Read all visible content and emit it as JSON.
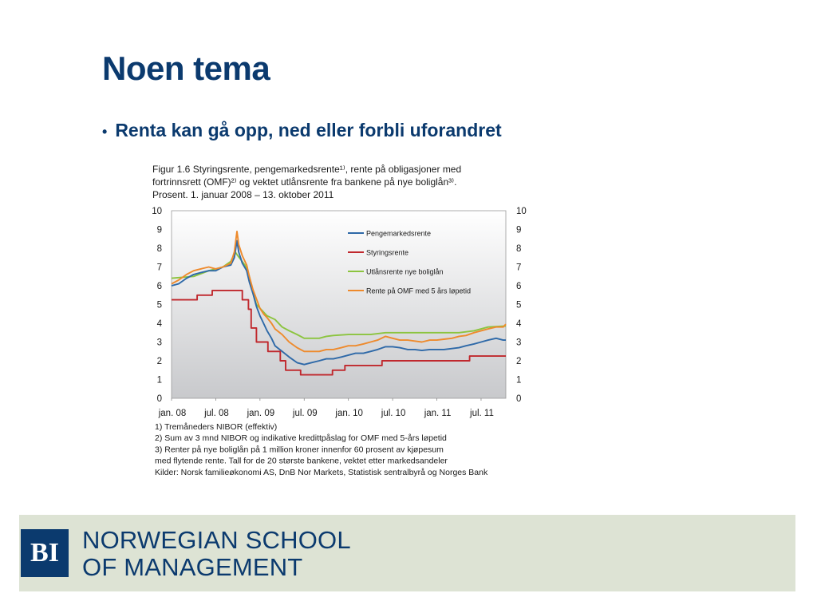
{
  "slide": {
    "title": "Noen tema",
    "bullet": "Renta kan gå opp, ned eller forbli uforandret"
  },
  "footer": {
    "logo_text": "BI",
    "school_line1": "NORWEGIAN SCHOOL",
    "school_line2": "OF MANAGEMENT",
    "band_color": "#dde3d4",
    "brand_color": "#0b3a6e"
  },
  "chart_data": {
    "type": "line",
    "title_lines": [
      "Figur 1.6 Styringsrente, pengemarkedsrente¹⁾, rente på obligasjoner med",
      "fortrinnsrett (OMF)²⁾ og vektet utlånsrente fra bankene på nye boliglån³⁾.",
      "Prosent. 1. januar 2008 – 13. oktober 2011"
    ],
    "x_tick_labels": [
      "jan. 08",
      "jul. 08",
      "jan. 09",
      "jul. 09",
      "jan. 10",
      "jul. 10",
      "jan. 11",
      "jul. 11"
    ],
    "x_tick_years": [
      2008.0,
      2008.5,
      2009.0,
      2009.5,
      2010.0,
      2010.5,
      2011.0,
      2011.5
    ],
    "xlim": [
      2008.0,
      2011.78
    ],
    "ylim": [
      0,
      10
    ],
    "y_ticks": [
      "0",
      "1",
      "2",
      "3",
      "4",
      "5",
      "6",
      "7",
      "8",
      "9",
      "10"
    ],
    "grid": false,
    "legend_position": "top-right",
    "background": "gradient-grey",
    "series": [
      {
        "name": "Pengemarkedsrente",
        "color": "#2e69a8",
        "points": [
          [
            2008.0,
            6.0
          ],
          [
            2008.08,
            6.1
          ],
          [
            2008.17,
            6.4
          ],
          [
            2008.25,
            6.6
          ],
          [
            2008.33,
            6.7
          ],
          [
            2008.42,
            6.8
          ],
          [
            2008.5,
            6.8
          ],
          [
            2008.58,
            7.0
          ],
          [
            2008.67,
            7.1
          ],
          [
            2008.71,
            7.5
          ],
          [
            2008.74,
            8.4
          ],
          [
            2008.76,
            7.8
          ],
          [
            2008.8,
            7.2
          ],
          [
            2008.85,
            6.8
          ],
          [
            2008.88,
            6.2
          ],
          [
            2008.92,
            5.6
          ],
          [
            2008.96,
            4.9
          ],
          [
            2009.0,
            4.4
          ],
          [
            2009.04,
            4.0
          ],
          [
            2009.08,
            3.6
          ],
          [
            2009.13,
            3.2
          ],
          [
            2009.17,
            2.8
          ],
          [
            2009.25,
            2.5
          ],
          [
            2009.33,
            2.2
          ],
          [
            2009.42,
            1.9
          ],
          [
            2009.5,
            1.8
          ],
          [
            2009.58,
            1.9
          ],
          [
            2009.67,
            2.0
          ],
          [
            2009.75,
            2.1
          ],
          [
            2009.83,
            2.1
          ],
          [
            2009.92,
            2.2
          ],
          [
            2010.0,
            2.3
          ],
          [
            2010.08,
            2.4
          ],
          [
            2010.17,
            2.4
          ],
          [
            2010.25,
            2.5
          ],
          [
            2010.33,
            2.6
          ],
          [
            2010.42,
            2.75
          ],
          [
            2010.5,
            2.75
          ],
          [
            2010.58,
            2.7
          ],
          [
            2010.67,
            2.6
          ],
          [
            2010.75,
            2.6
          ],
          [
            2010.83,
            2.55
          ],
          [
            2010.92,
            2.6
          ],
          [
            2011.0,
            2.6
          ],
          [
            2011.08,
            2.6
          ],
          [
            2011.17,
            2.65
          ],
          [
            2011.25,
            2.7
          ],
          [
            2011.33,
            2.8
          ],
          [
            2011.42,
            2.9
          ],
          [
            2011.5,
            3.0
          ],
          [
            2011.58,
            3.1
          ],
          [
            2011.67,
            3.2
          ],
          [
            2011.75,
            3.1
          ],
          [
            2011.78,
            3.1
          ]
        ]
      },
      {
        "name": "Styringsrente",
        "color": "#c0282d",
        "points": [
          [
            2008.0,
            5.25
          ],
          [
            2008.29,
            5.25
          ],
          [
            2008.29,
            5.5
          ],
          [
            2008.46,
            5.5
          ],
          [
            2008.46,
            5.75
          ],
          [
            2008.8,
            5.75
          ],
          [
            2008.8,
            5.25
          ],
          [
            2008.87,
            5.25
          ],
          [
            2008.87,
            4.75
          ],
          [
            2008.9,
            4.75
          ],
          [
            2008.9,
            3.75
          ],
          [
            2008.96,
            3.75
          ],
          [
            2008.96,
            3.0
          ],
          [
            2009.09,
            3.0
          ],
          [
            2009.09,
            2.5
          ],
          [
            2009.23,
            2.5
          ],
          [
            2009.23,
            2.0
          ],
          [
            2009.29,
            2.0
          ],
          [
            2009.29,
            1.5
          ],
          [
            2009.46,
            1.5
          ],
          [
            2009.46,
            1.25
          ],
          [
            2009.82,
            1.25
          ],
          [
            2009.82,
            1.5
          ],
          [
            2009.96,
            1.5
          ],
          [
            2009.96,
            1.75
          ],
          [
            2010.38,
            1.75
          ],
          [
            2010.38,
            2.0
          ],
          [
            2011.37,
            2.0
          ],
          [
            2011.37,
            2.25
          ],
          [
            2011.78,
            2.25
          ]
        ]
      },
      {
        "name": "Utlånsrente nye boliglån",
        "color": "#8cc43f",
        "points": [
          [
            2008.0,
            6.4
          ],
          [
            2008.25,
            6.5
          ],
          [
            2008.42,
            6.8
          ],
          [
            2008.58,
            7.0
          ],
          [
            2008.67,
            7.3
          ],
          [
            2008.72,
            7.8
          ],
          [
            2008.75,
            7.6
          ],
          [
            2008.83,
            7.1
          ],
          [
            2008.88,
            6.5
          ],
          [
            2008.92,
            5.6
          ],
          [
            2008.96,
            5.0
          ],
          [
            2009.0,
            4.8
          ],
          [
            2009.08,
            4.4
          ],
          [
            2009.17,
            4.2
          ],
          [
            2009.25,
            3.8
          ],
          [
            2009.33,
            3.6
          ],
          [
            2009.42,
            3.4
          ],
          [
            2009.5,
            3.2
          ],
          [
            2009.67,
            3.2
          ],
          [
            2009.75,
            3.3
          ],
          [
            2009.83,
            3.35
          ],
          [
            2010.0,
            3.4
          ],
          [
            2010.25,
            3.4
          ],
          [
            2010.42,
            3.5
          ],
          [
            2010.5,
            3.5
          ],
          [
            2010.75,
            3.5
          ],
          [
            2010.92,
            3.5
          ],
          [
            2011.0,
            3.5
          ],
          [
            2011.25,
            3.5
          ],
          [
            2011.42,
            3.6
          ],
          [
            2011.5,
            3.7
          ],
          [
            2011.58,
            3.8
          ],
          [
            2011.78,
            3.85
          ]
        ]
      },
      {
        "name": "Rente på OMF med 5 års løpetid",
        "color": "#ee8a2c",
        "points": [
          [
            2008.0,
            6.1
          ],
          [
            2008.08,
            6.3
          ],
          [
            2008.17,
            6.6
          ],
          [
            2008.25,
            6.8
          ],
          [
            2008.33,
            6.9
          ],
          [
            2008.42,
            7.0
          ],
          [
            2008.5,
            6.9
          ],
          [
            2008.58,
            7.0
          ],
          [
            2008.67,
            7.2
          ],
          [
            2008.71,
            7.8
          ],
          [
            2008.74,
            8.9
          ],
          [
            2008.76,
            8.2
          ],
          [
            2008.8,
            7.6
          ],
          [
            2008.85,
            7.1
          ],
          [
            2008.88,
            6.5
          ],
          [
            2008.92,
            5.8
          ],
          [
            2008.96,
            5.3
          ],
          [
            2009.0,
            4.8
          ],
          [
            2009.04,
            4.5
          ],
          [
            2009.08,
            4.3
          ],
          [
            2009.13,
            4.0
          ],
          [
            2009.17,
            3.7
          ],
          [
            2009.25,
            3.4
          ],
          [
            2009.33,
            3.0
          ],
          [
            2009.42,
            2.7
          ],
          [
            2009.5,
            2.5
          ],
          [
            2009.58,
            2.5
          ],
          [
            2009.67,
            2.5
          ],
          [
            2009.75,
            2.6
          ],
          [
            2009.83,
            2.6
          ],
          [
            2009.92,
            2.7
          ],
          [
            2010.0,
            2.8
          ],
          [
            2010.08,
            2.8
          ],
          [
            2010.17,
            2.9
          ],
          [
            2010.25,
            3.0
          ],
          [
            2010.33,
            3.1
          ],
          [
            2010.42,
            3.3
          ],
          [
            2010.5,
            3.2
          ],
          [
            2010.58,
            3.1
          ],
          [
            2010.67,
            3.1
          ],
          [
            2010.75,
            3.05
          ],
          [
            2010.83,
            3.0
          ],
          [
            2010.92,
            3.1
          ],
          [
            2011.0,
            3.1
          ],
          [
            2011.08,
            3.15
          ],
          [
            2011.17,
            3.2
          ],
          [
            2011.25,
            3.3
          ],
          [
            2011.33,
            3.35
          ],
          [
            2011.42,
            3.5
          ],
          [
            2011.5,
            3.6
          ],
          [
            2011.58,
            3.7
          ],
          [
            2011.67,
            3.8
          ],
          [
            2011.75,
            3.8
          ],
          [
            2011.78,
            3.95
          ]
        ]
      }
    ],
    "footnotes": [
      "1) Tremåneders NIBOR (effektiv)",
      "2) Sum av 3 mnd NIBOR og indikative kredittpåslag for OMF med 5-års løpetid",
      "3) Renter på nye boliglån på 1 million kroner innenfor 60 prosent av kjøpesum",
      "med flytende rente. Tall for de 20 største bankene, vektet etter markedsandeler",
      "Kilder: Norsk familieøkonomi AS, DnB Nor Markets, Statistisk sentralbyrå og Norges Bank"
    ]
  }
}
